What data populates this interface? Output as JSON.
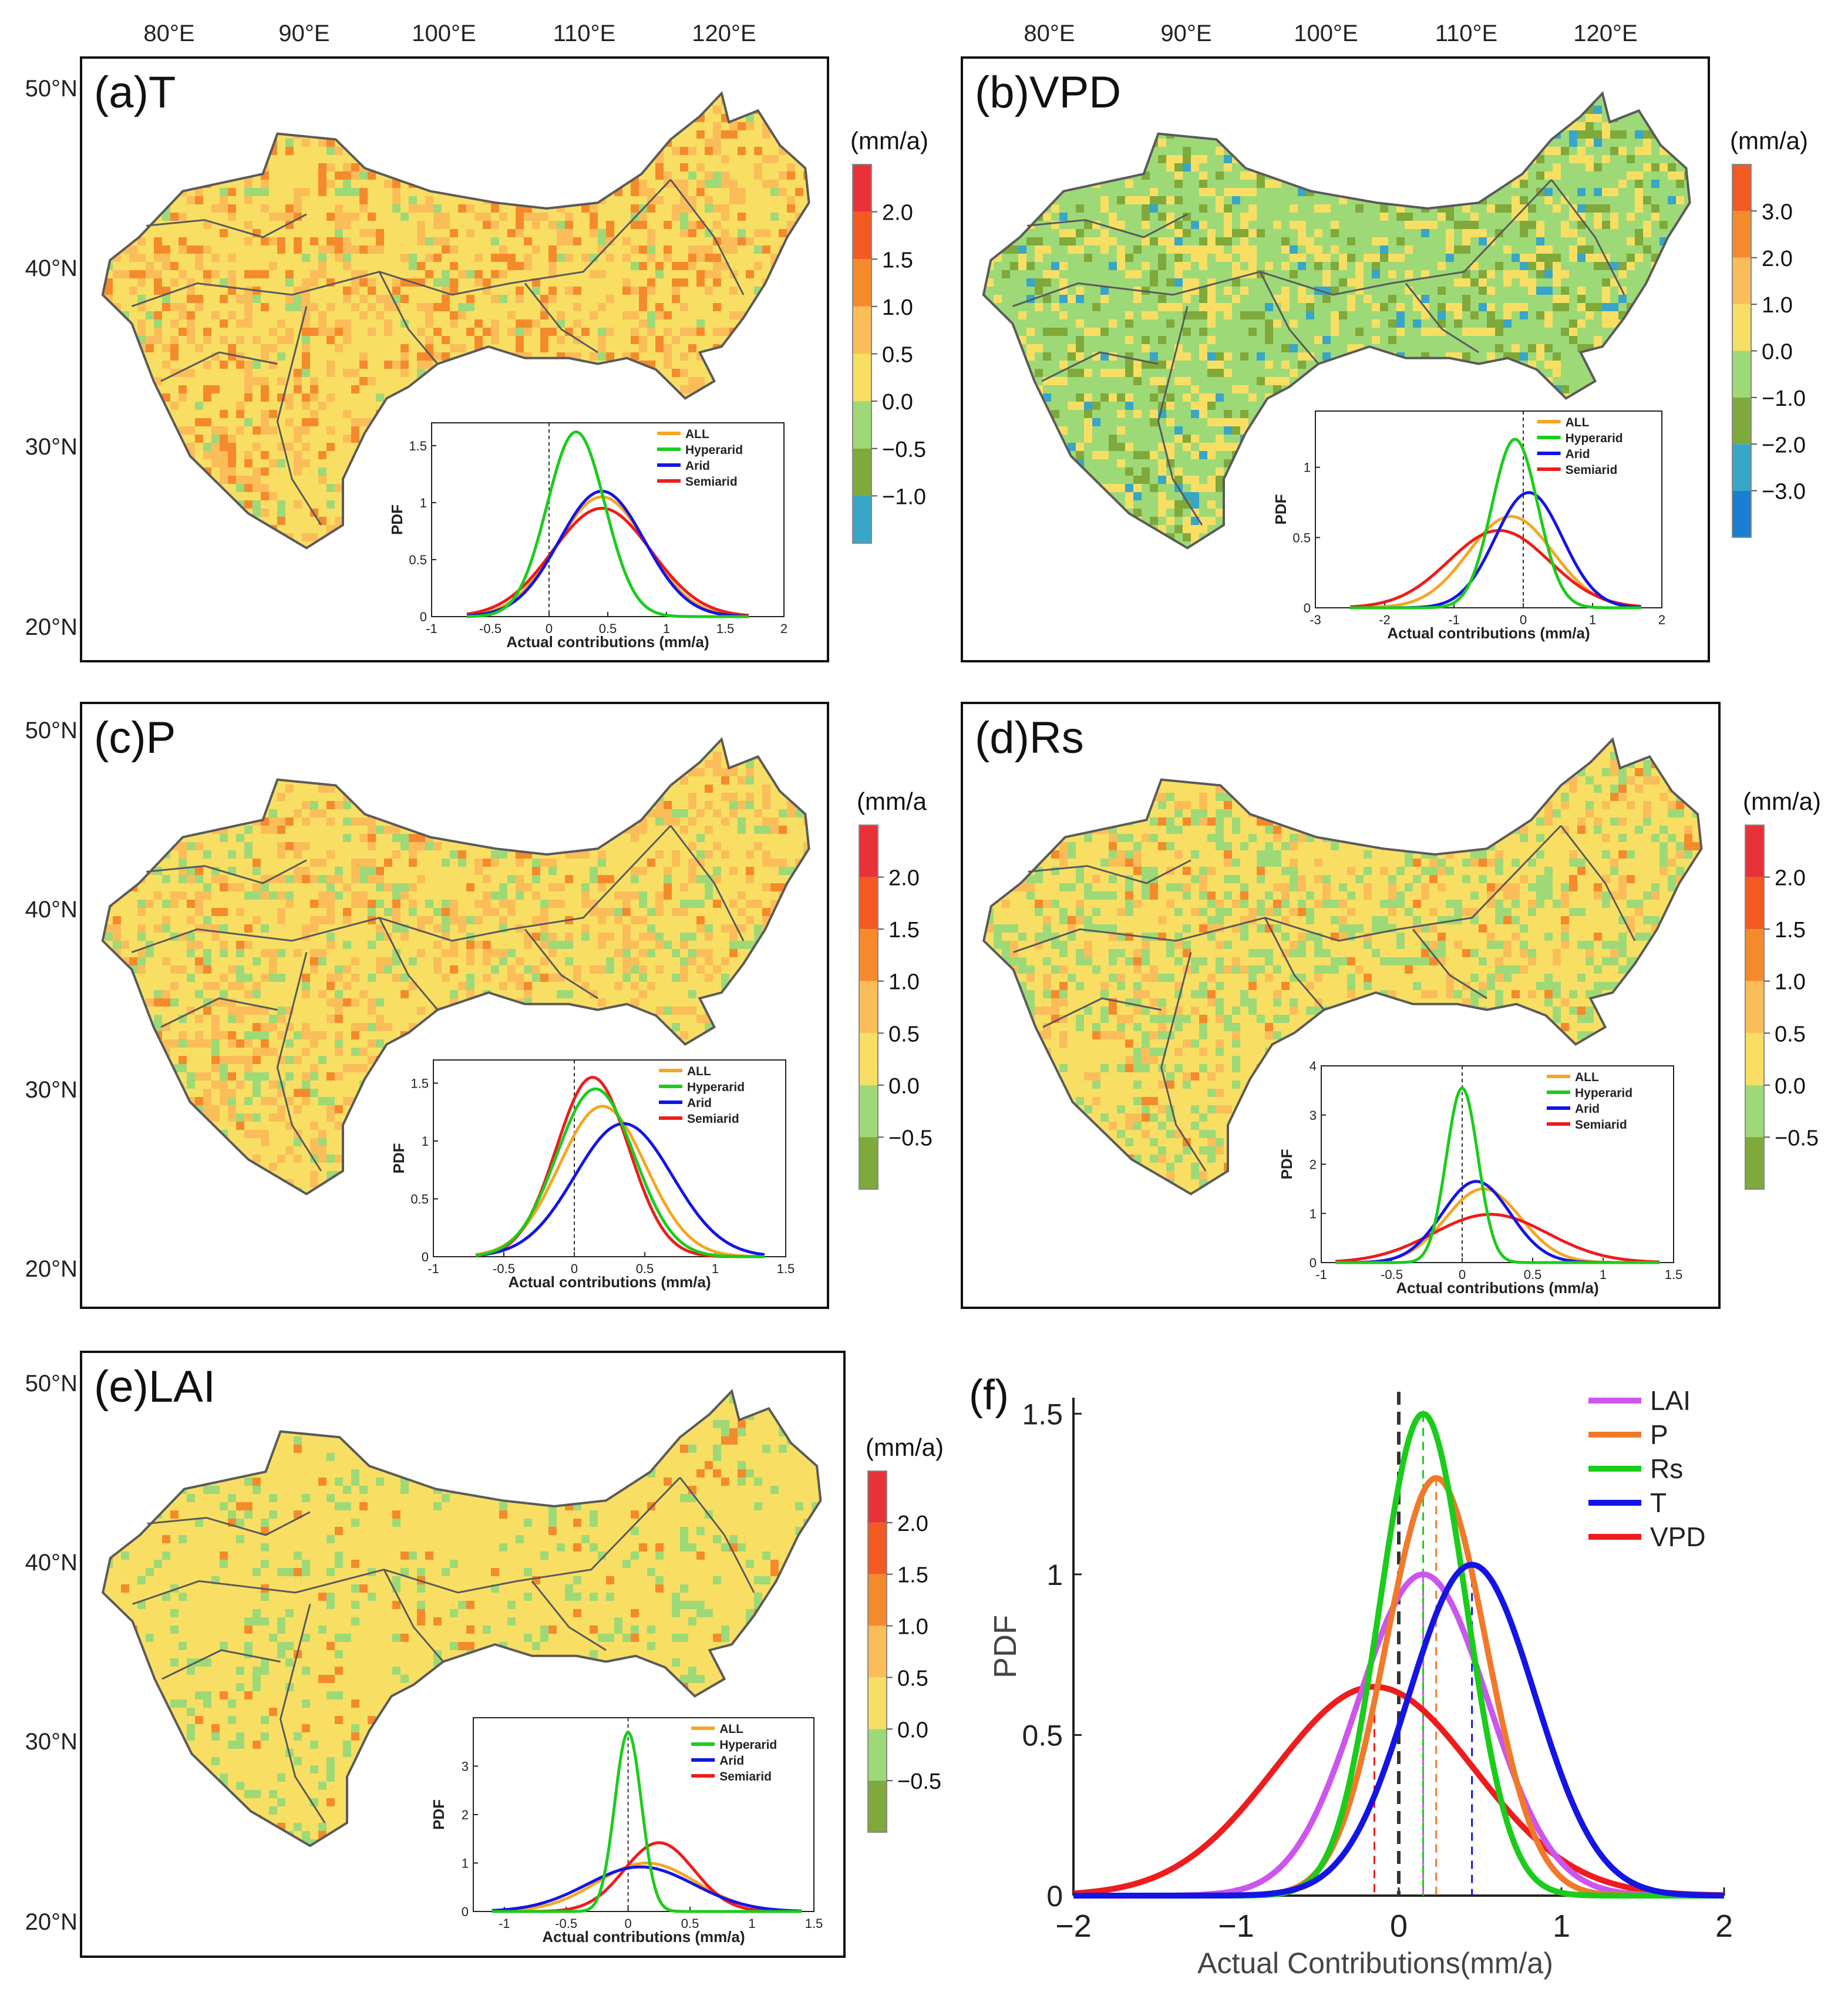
{
  "figure": {
    "lon_ticks": [
      "80°E",
      "90°E",
      "100°E",
      "110°E",
      "120°E"
    ],
    "lat_ticks": [
      "50°N",
      "40°N",
      "30°N",
      "20°N"
    ],
    "inset_xlabel": "Actual contributions (mm/a)",
    "inset_ylabel": "PDF",
    "colors": {
      "ALL": "#f5a623",
      "Hyperarid": "#1bcc1b",
      "Arid": "#1414e6",
      "Semiarid": "#ee1c1c",
      "LAI": "#cc55ee",
      "P": "#f07a2a",
      "Rs": "#1bcc1b",
      "T": "#1414e6",
      "VPD": "#ee1c1c"
    }
  },
  "chart_data": [
    {
      "id": "a",
      "type": "line",
      "panel_label": "(a)T",
      "legend_unit": "(mm/a)",
      "colorbar": {
        "ticks": [
          "2.0",
          "1.5",
          "1.0",
          "0.5",
          "0.0",
          "−0.5",
          "−1.0"
        ],
        "colors": [
          "#e8323a",
          "#f25a22",
          "#f58a2c",
          "#fbbd5a",
          "#f8df63",
          "#9ed977",
          "#7fa93a",
          "#37a6c8"
        ]
      },
      "map_palette": [
        "#f8df63",
        "#fbbd5a",
        "#f58a2c",
        "#9ed977"
      ],
      "inset": {
        "xlim": [
          -1,
          2
        ],
        "ylim": [
          0,
          1.7
        ],
        "xticks": [
          -1,
          -0.5,
          0,
          0.5,
          1,
          1.5,
          2
        ],
        "xtick_labels": [
          "-1",
          "-0.5",
          "0",
          "0.5",
          "1",
          "1.5",
          "2"
        ],
        "yticks": [
          0,
          0.5,
          1,
          1.5
        ],
        "ytick_labels": [
          "0",
          "0.5",
          "1",
          "1.5"
        ],
        "legend": [
          "ALL",
          "Hyperarid",
          "Arid",
          "Semiarid"
        ],
        "series": [
          {
            "name": "ALL",
            "mean": 0.45,
            "peak": 1.05,
            "xmin": -0.7,
            "xmax": 1.7
          },
          {
            "name": "Hyperarid",
            "mean": 0.23,
            "peak": 1.62,
            "xmin": -0.7,
            "xmax": 1.7
          },
          {
            "name": "Arid",
            "mean": 0.45,
            "peak": 1.1,
            "xmin": -0.7,
            "xmax": 1.7
          },
          {
            "name": "Semiarid",
            "mean": 0.45,
            "peak": 0.95,
            "xmin": -0.7,
            "xmax": 1.7
          }
        ]
      }
    },
    {
      "id": "b",
      "type": "line",
      "panel_label": "(b)VPD",
      "legend_unit": "(mm/a)",
      "colorbar": {
        "ticks": [
          "3.0",
          "2.0",
          "1.0",
          "0.0",
          "−1.0",
          "−2.0",
          "−3.0"
        ],
        "colors": [
          "#f25a22",
          "#f58a2c",
          "#fbbd5a",
          "#f8df63",
          "#9ed977",
          "#7fa93a",
          "#37a6c8",
          "#1a7fd1"
        ]
      },
      "map_palette": [
        "#9ed977",
        "#f8df63",
        "#7fa93a",
        "#37a6c8"
      ],
      "inset": {
        "xlim": [
          -3,
          2
        ],
        "ylim": [
          0,
          1.4
        ],
        "xticks": [
          -3,
          -2,
          -1,
          0,
          1,
          2
        ],
        "xtick_labels": [
          "-3",
          "-2",
          "-1",
          "0",
          "1",
          "2"
        ],
        "yticks": [
          0,
          0.5,
          1
        ],
        "ytick_labels": [
          "0",
          "0.5",
          "1"
        ],
        "legend": [
          "ALL",
          "Hyperarid",
          "Arid",
          "Semiarid"
        ],
        "series": [
          {
            "name": "ALL",
            "mean": -0.18,
            "peak": 0.65,
            "xmin": -2.5,
            "xmax": 1.7
          },
          {
            "name": "Hyperarid",
            "mean": -0.12,
            "peak": 1.2,
            "xmin": -2.5,
            "xmax": 1.7
          },
          {
            "name": "Arid",
            "mean": 0.08,
            "peak": 0.82,
            "xmin": -2.5,
            "xmax": 1.7
          },
          {
            "name": "Semiarid",
            "mean": -0.35,
            "peak": 0.55,
            "xmin": -2.5,
            "xmax": 1.7
          }
        ]
      }
    },
    {
      "id": "c",
      "type": "line",
      "panel_label": "(c)P",
      "legend_unit": "(mm/a",
      "colorbar": {
        "ticks": [
          "2.0",
          "1.5",
          "1.0",
          "0.5",
          "0.0",
          "−0.5"
        ],
        "colors": [
          "#e8323a",
          "#f25a22",
          "#f58a2c",
          "#fbbd5a",
          "#f8df63",
          "#9ed977",
          "#7fa93a"
        ]
      },
      "map_palette": [
        "#f8df63",
        "#fbbd5a",
        "#9ed977",
        "#f58a2c"
      ],
      "inset": {
        "xlim": [
          -1,
          1.5
        ],
        "ylim": [
          0,
          1.7
        ],
        "xticks": [
          -1,
          -0.5,
          0,
          0.5,
          1,
          1.5
        ],
        "xtick_labels": [
          "-1",
          "-0.5",
          "0",
          "0.5",
          "1",
          "1.5"
        ],
        "yticks": [
          0,
          0.5,
          1,
          1.5
        ],
        "ytick_labels": [
          "0",
          "0.5",
          "1",
          "1.5"
        ],
        "legend": [
          "ALL",
          "Hyperarid",
          "Arid",
          "Semiarid"
        ],
        "series": [
          {
            "name": "ALL",
            "mean": 0.2,
            "peak": 1.3,
            "xmin": -0.7,
            "xmax": 1.35
          },
          {
            "name": "Hyperarid",
            "mean": 0.15,
            "peak": 1.45,
            "xmin": -0.7,
            "xmax": 1.35
          },
          {
            "name": "Arid",
            "mean": 0.35,
            "peak": 1.15,
            "xmin": -0.7,
            "xmax": 1.35
          },
          {
            "name": "Semiarid",
            "mean": 0.13,
            "peak": 1.55,
            "xmin": -0.7,
            "xmax": 1.35
          }
        ]
      }
    },
    {
      "id": "d",
      "type": "line",
      "panel_label": "(d)Rs",
      "legend_unit": "(mm/a)",
      "colorbar": {
        "ticks": [
          "2.0",
          "1.5",
          "1.0",
          "0.5",
          "0.0",
          "−0.5"
        ],
        "colors": [
          "#e8323a",
          "#f25a22",
          "#f58a2c",
          "#fbbd5a",
          "#f8df63",
          "#9ed977",
          "#7fa93a"
        ]
      },
      "map_palette": [
        "#f8df63",
        "#9ed977",
        "#fbbd5a",
        "#f58a2c"
      ],
      "inset": {
        "xlim": [
          -1,
          1.5
        ],
        "ylim": [
          0,
          4
        ],
        "xticks": [
          -1,
          -0.5,
          0,
          0.5,
          1,
          1.5
        ],
        "xtick_labels": [
          "-1",
          "-0.5",
          "0",
          "0.5",
          "1",
          "1.5"
        ],
        "yticks": [
          0,
          1,
          2,
          3,
          4
        ],
        "ytick_labels": [
          "0",
          "1",
          "2",
          "3",
          "4"
        ],
        "legend": [
          "ALL",
          "Hyperarid",
          "Arid",
          "Semiarid"
        ],
        "series": [
          {
            "name": "ALL",
            "mean": 0.15,
            "peak": 1.5,
            "xmin": -0.9,
            "xmax": 1.4
          },
          {
            "name": "Hyperarid",
            "mean": 0.0,
            "peak": 3.55,
            "xmin": -0.9,
            "xmax": 1.4
          },
          {
            "name": "Arid",
            "mean": 0.1,
            "peak": 1.65,
            "xmin": -0.9,
            "xmax": 1.4
          },
          {
            "name": "Semiarid",
            "mean": 0.2,
            "peak": 0.98,
            "xmin": -0.9,
            "xmax": 1.4
          }
        ]
      }
    },
    {
      "id": "e",
      "type": "line",
      "panel_label": "(e)LAI",
      "legend_unit": "(mm/a)",
      "colorbar": {
        "ticks": [
          "2.0",
          "1.5",
          "1.0",
          "0.5",
          "0.0",
          "−0.5"
        ],
        "colors": [
          "#e8323a",
          "#f25a22",
          "#f58a2c",
          "#fbbd5a",
          "#f8df63",
          "#9ed977",
          "#7fa93a"
        ]
      },
      "map_palette": [
        "#f8df63",
        "#f8df63",
        "#9ed977",
        "#f58a2c"
      ],
      "inset": {
        "xlim": [
          -1.25,
          1.5
        ],
        "ylim": [
          0,
          4
        ],
        "xticks": [
          -1,
          -0.5,
          0,
          0.5,
          1,
          1.5
        ],
        "xtick_labels": [
          "-1",
          "-0.5",
          "0",
          "0.5",
          "1",
          "1.5"
        ],
        "yticks": [
          0,
          1,
          2,
          3
        ],
        "ytick_labels": [
          "0",
          "1",
          "2",
          "3"
        ],
        "legend": [
          "ALL",
          "Hyperarid",
          "Arid",
          "Semiarid"
        ],
        "series": [
          {
            "name": "ALL",
            "mean": 0.15,
            "peak": 1.0,
            "xmin": -1.1,
            "xmax": 1.4
          },
          {
            "name": "Hyperarid",
            "mean": 0.0,
            "peak": 3.7,
            "xmin": -1.1,
            "xmax": 1.4
          },
          {
            "name": "Arid",
            "mean": 0.1,
            "peak": 0.92,
            "xmin": -1.1,
            "xmax": 1.4
          },
          {
            "name": "Semiarid",
            "mean": 0.25,
            "peak": 1.42,
            "xmin": -1.1,
            "xmax": 1.4
          }
        ]
      }
    },
    {
      "id": "f",
      "type": "line",
      "panel_label": "(f)",
      "xlabel": "Actual Contributions(mm/a)",
      "ylabel": "PDF",
      "xlim": [
        -2,
        2
      ],
      "ylim": [
        0,
        1.55
      ],
      "xticks": [
        -2,
        -1,
        0,
        1,
        2
      ],
      "xtick_labels": [
        "−2",
        "−1",
        "0",
        "1",
        "2"
      ],
      "yticks": [
        0,
        0.5,
        1,
        1.5
      ],
      "ytick_labels": [
        "0",
        "0.5",
        "1",
        "1.5"
      ],
      "legend": [
        "LAI",
        "P",
        "Rs",
        "T",
        "VPD"
      ],
      "series": [
        {
          "name": "LAI",
          "mean": 0.15,
          "peak": 1.0
        },
        {
          "name": "P",
          "mean": 0.23,
          "peak": 1.3
        },
        {
          "name": "Rs",
          "mean": 0.15,
          "peak": 1.5
        },
        {
          "name": "T",
          "mean": 0.45,
          "peak": 1.03
        },
        {
          "name": "VPD",
          "mean": -0.15,
          "peak": 0.65
        }
      ]
    }
  ]
}
